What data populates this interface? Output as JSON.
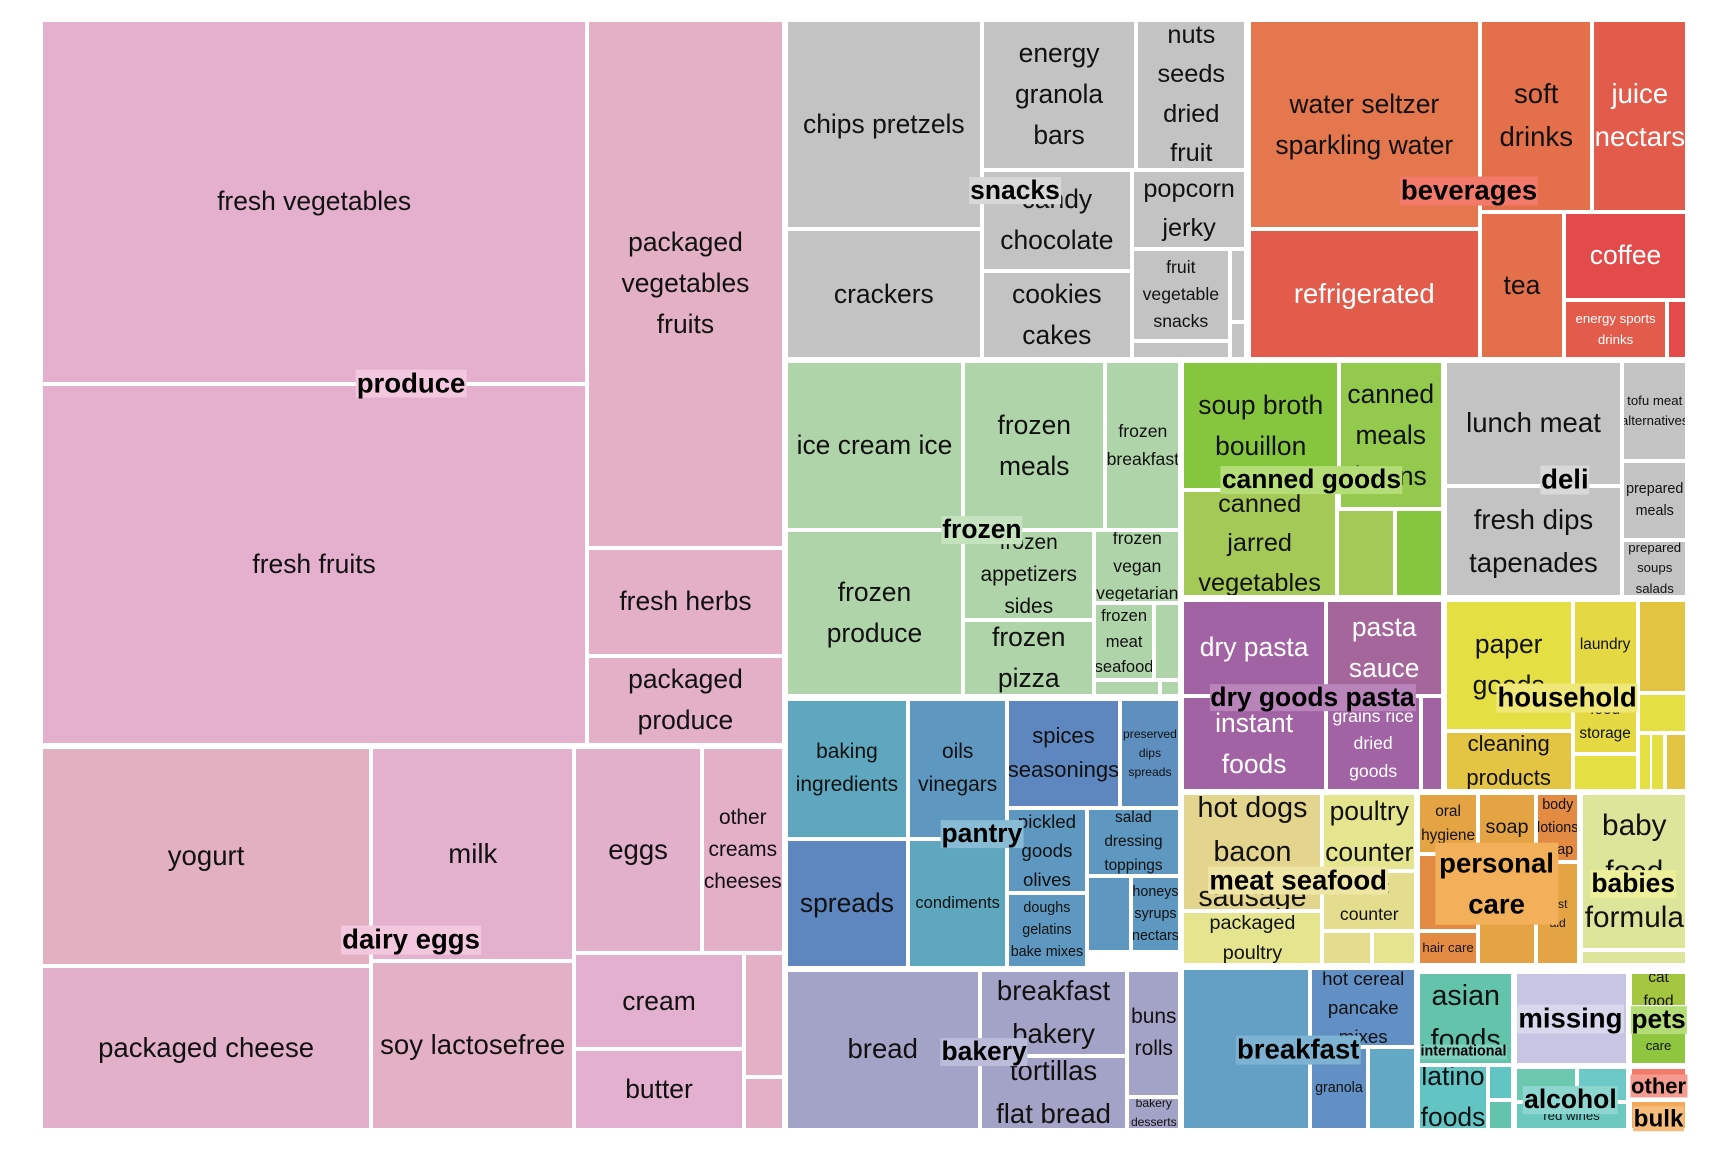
{
  "chart_data": {
    "type": "treemap",
    "groups": [
      {
        "name": "produce",
        "color": "#e4b0cd",
        "label_color": "#f3c8de",
        "items": [
          {
            "name": "fresh vegetables",
            "color": "#e4b0cd"
          },
          {
            "name": "fresh fruits",
            "color": "#e4b0cd"
          },
          {
            "name": "packaged vegetables fruits",
            "color": "#e4b0c3"
          },
          {
            "name": "fresh herbs",
            "color": "#e4b0c8"
          },
          {
            "name": "packaged produce",
            "color": "#e4b0c8"
          }
        ]
      },
      {
        "name": "dairy eggs",
        "color": "#e4b0c3",
        "label_color": "#f3c8de",
        "items": [
          {
            "name": "yogurt",
            "color": "#e3b0c2"
          },
          {
            "name": "packaged cheese",
            "color": "#e3b0c9"
          },
          {
            "name": "milk",
            "color": "#e3b0cd"
          },
          {
            "name": "soy lactosefree",
            "color": "#e3b0c4"
          },
          {
            "name": "eggs",
            "color": "#e3b0cc"
          },
          {
            "name": "other creams cheeses",
            "color": "#e3b0c8"
          },
          {
            "name": "cream",
            "color": "#e3b0d0"
          },
          {
            "name": "butter",
            "color": "#e3b0d0"
          },
          {
            "name": "",
            "color": "#e3b0c6"
          },
          {
            "name": "",
            "color": "#e3b0c8"
          }
        ]
      },
      {
        "name": "snacks",
        "color": "#c3c3c3",
        "label_color": "#d8d8d8",
        "items": [
          {
            "name": "chips pretzels",
            "color": "#c3c3c3"
          },
          {
            "name": "crackers",
            "color": "#c3c3c3"
          },
          {
            "name": "energy granola bars",
            "color": "#c3c3c3"
          },
          {
            "name": "candy chocolate",
            "color": "#c3c3c3"
          },
          {
            "name": "cookies cakes",
            "color": "#c3c3c3"
          },
          {
            "name": "nuts seeds dried fruit",
            "color": "#c3c3c3"
          },
          {
            "name": "popcorn jerky",
            "color": "#c3c3c3"
          },
          {
            "name": "fruit vegetable snacks",
            "color": "#c3c3c3"
          },
          {
            "name": "",
            "color": "#c3c3c3"
          },
          {
            "name": "",
            "color": "#c3c3c3"
          },
          {
            "name": "",
            "color": "#c3c3c3"
          }
        ]
      },
      {
        "name": "beverages",
        "color": "#e4624e",
        "label_color": "#f37a6a",
        "items": [
          {
            "name": "water seltzer sparkling water",
            "color": "#e4774e"
          },
          {
            "name": "refrigerated",
            "color": "#e35b4b"
          },
          {
            "name": "soft drinks",
            "color": "#e36f4b"
          },
          {
            "name": "juice nectars",
            "color": "#e35b4b"
          },
          {
            "name": "tea",
            "color": "#e36f4b"
          },
          {
            "name": "coffee",
            "color": "#e34b4b"
          },
          {
            "name": "energy sports drinks",
            "color": "#e35b4b"
          },
          {
            "name": "",
            "color": "#e34b4b"
          }
        ]
      },
      {
        "name": "frozen",
        "color": "#b0d4a9",
        "label_color": "#c6e3c0",
        "items": [
          {
            "name": "ice cream ice",
            "color": "#b0d4a9"
          },
          {
            "name": "frozen meals",
            "color": "#b0d4a9"
          },
          {
            "name": "frozen breakfast",
            "color": "#b0d4a9"
          },
          {
            "name": "frozen produce",
            "color": "#b0d4a9"
          },
          {
            "name": "frozen appetizers sides",
            "color": "#b0d4a9"
          },
          {
            "name": "frozen vegan vegetarian",
            "color": "#b0d4a9"
          },
          {
            "name": "frozen pizza",
            "color": "#b0d4a9"
          },
          {
            "name": "frozen meat seafood",
            "color": "#b0d4a9"
          },
          {
            "name": "",
            "color": "#b0d4a9"
          },
          {
            "name": "",
            "color": "#b0d4a9"
          },
          {
            "name": "",
            "color": "#b0d4a9"
          }
        ]
      },
      {
        "name": "canned goods",
        "color": "#93c94d",
        "label_color": "#b4dd78",
        "items": [
          {
            "name": "soup broth bouillon",
            "color": "#86c63f"
          },
          {
            "name": "canned meals beans",
            "color": "#93c94d"
          },
          {
            "name": "canned jarred vegetables",
            "color": "#a5c956"
          },
          {
            "name": "",
            "color": "#a5c956"
          },
          {
            "name": "",
            "color": "#86c63f"
          }
        ]
      },
      {
        "name": "deli",
        "color": "#c3c3c3",
        "label_color": "#d8d8d8",
        "items": [
          {
            "name": "lunch meat",
            "color": "#c3c3c3"
          },
          {
            "name": "fresh dips tapenades",
            "color": "#c3c3c3"
          },
          {
            "name": "tofu meat alternatives",
            "color": "#c3c3c3"
          },
          {
            "name": "prepared meals",
            "color": "#c3c3c3"
          },
          {
            "name": "prepared soups salads",
            "color": "#c3c3c3"
          }
        ]
      },
      {
        "name": "dry goods pasta",
        "color": "#a163a4",
        "label_color": "#b884ba",
        "items": [
          {
            "name": "dry pasta",
            "color": "#a163a4"
          },
          {
            "name": "pasta sauce",
            "color": "#a5669b"
          },
          {
            "name": "instant foods",
            "color": "#a163a4"
          },
          {
            "name": "grains rice dried goods",
            "color": "#a163a4"
          },
          {
            "name": "",
            "color": "#a163a4"
          }
        ]
      },
      {
        "name": "household",
        "color": "#e4d943",
        "label_color": "#efe777",
        "items": [
          {
            "name": "paper goods",
            "color": "#e4e043"
          },
          {
            "name": "laundry",
            "color": "#e4d943"
          },
          {
            "name": "cleaning products",
            "color": "#e4c443"
          },
          {
            "name": "food storage",
            "color": "#e4d943"
          },
          {
            "name": "",
            "color": "#e4c443"
          },
          {
            "name": "",
            "color": "#e4e043"
          },
          {
            "name": "",
            "color": "#e4e043"
          },
          {
            "name": "",
            "color": "#e4e043"
          },
          {
            "name": "",
            "color": "#e4c443"
          },
          {
            "name": "",
            "color": "#e4e043"
          }
        ]
      },
      {
        "name": "pantry",
        "color": "#5e9fbf",
        "label_color": "#89bcd4",
        "items": [
          {
            "name": "baking ingredients",
            "color": "#5ea7bf"
          },
          {
            "name": "spreads",
            "color": "#5e87bf"
          },
          {
            "name": "oils vinegars",
            "color": "#5e97bf"
          },
          {
            "name": "condiments",
            "color": "#5ea7bf"
          },
          {
            "name": "spices seasonings",
            "color": "#5e87bf"
          },
          {
            "name": "preserved dips spreads",
            "color": "#5e8fbf"
          },
          {
            "name": "pickled goods olives",
            "color": "#5e97bf"
          },
          {
            "name": "salad dressing toppings",
            "color": "#5e97bf"
          },
          {
            "name": "doughs gelatins bake mixes",
            "color": "#5e97bf"
          },
          {
            "name": "honeys syrups nectars",
            "color": "#5e97bf"
          },
          {
            "name": "",
            "color": "#5e97bf"
          }
        ]
      },
      {
        "name": "meat seafood",
        "color": "#e4d58e",
        "label_color": "#efe5a5",
        "items": [
          {
            "name": "hot dogs bacon sausage",
            "color": "#e4d58e"
          },
          {
            "name": "poultry counter",
            "color": "#e4e58e"
          },
          {
            "name": "meat counter",
            "color": "#e4dd8e"
          },
          {
            "name": "packaged poultry",
            "color": "#e4e58e"
          },
          {
            "name": "",
            "color": "#e4dd8e"
          },
          {
            "name": "",
            "color": "#e4e58e"
          }
        ]
      },
      {
        "name": "personal care",
        "color": "#e4a443",
        "label_color": "#f3b05a",
        "items": [
          {
            "name": "oral hygiene",
            "color": "#e4a443"
          },
          {
            "name": "soap",
            "color": "#e4a443"
          },
          {
            "name": "body lotions soap",
            "color": "#e48b43"
          },
          {
            "name": "hair care",
            "color": "#e48b43"
          },
          {
            "name": "first aid",
            "color": "#e4a443"
          },
          {
            "name": "",
            "color": "#e4a443"
          },
          {
            "name": "",
            "color": "#e48b43"
          }
        ]
      },
      {
        "name": "babies",
        "color": "#dde59b",
        "label_color": "#eeef9a",
        "items": [
          {
            "name": "baby food formula",
            "color": "#dde59b"
          },
          {
            "name": "",
            "color": "#dde59b"
          }
        ]
      },
      {
        "name": "bakery",
        "color": "#a3a3c7",
        "label_color": "#bbbbda",
        "items": [
          {
            "name": "bread",
            "color": "#a3a3c7"
          },
          {
            "name": "breakfast bakery",
            "color": "#a3a3c7"
          },
          {
            "name": "tortillas flat bread",
            "color": "#a3a3c7"
          },
          {
            "name": "buns rolls",
            "color": "#a3a3c7"
          },
          {
            "name": "bakery desserts",
            "color": "#a3a3c7"
          }
        ]
      },
      {
        "name": "breakfast",
        "color": "#63a0c4",
        "label_color": "#7db2d2",
        "items": [
          {
            "name": "",
            "color": "#63a0c4"
          },
          {
            "name": "hot cereal pancake mixes",
            "color": "#6390c4"
          },
          {
            "name": "granola",
            "color": "#6390c4"
          },
          {
            "name": "",
            "color": "#63a8c4"
          }
        ]
      },
      {
        "name": "international",
        "color": "#63c4ab",
        "label_color": "#7fd0bc",
        "items": [
          {
            "name": "asian foods",
            "color": "#63c4ab"
          },
          {
            "name": "latino foods",
            "color": "#63c4c4"
          },
          {
            "name": "",
            "color": "#63c4c4"
          },
          {
            "name": "",
            "color": "#63c4ab"
          }
        ]
      },
      {
        "name": "missing",
        "color": "#c6c6e4",
        "label_color": "#d7d7ee",
        "items": [
          {
            "name": "",
            "color": "#c6c6e4"
          }
        ]
      },
      {
        "name": "alcohol",
        "color": "#6dc8c0",
        "label_color": "#8dd6cf",
        "items": [
          {
            "name": "red wines",
            "color": "#6dc8c0"
          },
          {
            "name": "",
            "color": "#6dc8b0"
          },
          {
            "name": "",
            "color": "#6dc8c8"
          }
        ]
      },
      {
        "name": "pets",
        "color": "#8ec63f",
        "label_color": "#b4dd78",
        "items": [
          {
            "name": "cat food",
            "color": "#a5c63f"
          },
          {
            "name": "dog food care",
            "color": "#8ec63f"
          }
        ]
      },
      {
        "name": "other",
        "color": "#f37a6a",
        "label_color": "#f59a8e",
        "items": [
          {
            "name": "",
            "color": "#f37a6a"
          }
        ]
      },
      {
        "name": "bulk",
        "color": "#f3a85a",
        "label_color": "#f6bc7c",
        "items": [
          {
            "name": "",
            "color": "#f3a85a"
          }
        ]
      }
    ]
  }
}
